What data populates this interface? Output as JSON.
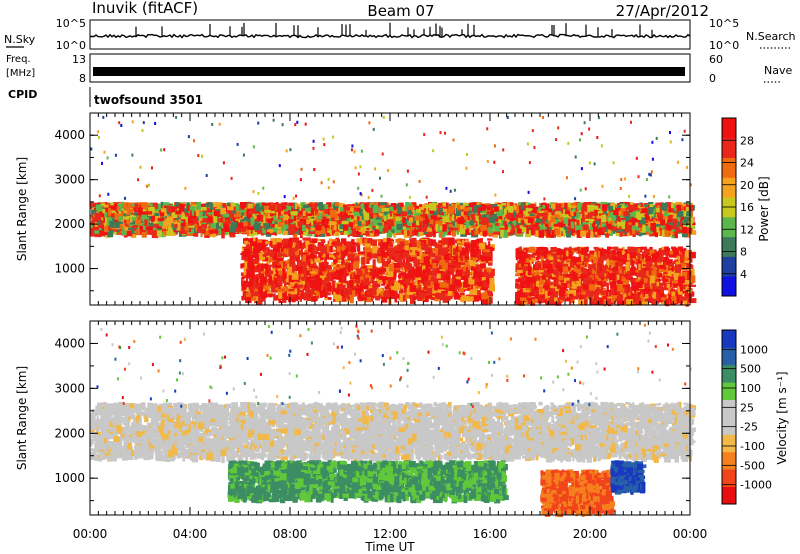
{
  "header": {
    "station": "Inuvik (fitACF)",
    "beam": "Beam 07",
    "date": "27/Apr/2012"
  },
  "panels": {
    "nsky_label": "N.Sky",
    "nsky_ticks": [
      "10^5",
      "10^0"
    ],
    "nsearch_label": "N.Search",
    "freq_label_line1": "Freq.",
    "freq_label_line2": "[MHz]",
    "freq_ticks": [
      "13",
      "8"
    ],
    "nave_label": "Nave",
    "nave_ticks": [
      "60",
      "0"
    ],
    "cpid_label": "CPID",
    "cpid_value": "twofsound 3501"
  },
  "colors": {
    "power_scale": [
      "#1010e0",
      "#2040a0",
      "#3c7a5a",
      "#5cb84c",
      "#c8c81e",
      "#f5a21e",
      "#f06a10",
      "#e8281a",
      "#f01212"
    ],
    "velocity_scale": [
      "#e80e0e",
      "#f2441a",
      "#f5801e",
      "#f2b848",
      "#c8c8c8",
      "#c8c8c8",
      "#60c83a",
      "#3c8c64",
      "#2860a8",
      "#1838c0"
    ]
  },
  "chart_data": [
    {
      "type": "heatmap",
      "name": "power",
      "ylabel": "Slant Range [km]",
      "ylim": [
        180,
        4500
      ],
      "yticks": [
        "1000",
        "2000",
        "3000",
        "4000"
      ],
      "xlim_hours": [
        0,
        24
      ],
      "colorbar_label": "Power [dB]",
      "colorbar_ticks": [
        "4",
        "8",
        "12",
        "16",
        "20",
        "24",
        "28"
      ],
      "echo_bands": [
        {
          "t0": 0.0,
          "t1": 24.0,
          "r0": 1850,
          "r1": 2500,
          "level": "mixed"
        },
        {
          "t0": 6.0,
          "t1": 16.0,
          "r0": 350,
          "r1": 1700,
          "level": "strong"
        },
        {
          "t0": 17.0,
          "t1": 24.0,
          "r0": 300,
          "r1": 1500,
          "level": "strong"
        }
      ]
    },
    {
      "type": "heatmap",
      "name": "velocity",
      "ylabel": "Slant Range [km]",
      "ylim": [
        180,
        4500
      ],
      "yticks": [
        "1000",
        "2000",
        "3000",
        "4000"
      ],
      "xlim_hours": [
        0,
        24
      ],
      "xticks": [
        "00:00",
        "04:00",
        "08:00",
        "12:00",
        "16:00",
        "20:00",
        "00:00"
      ],
      "xlabel": "Time UT",
      "colorbar_label": "Velocity [m s⁻¹]",
      "colorbar_ticks": [
        "1000",
        "500",
        "100",
        "25",
        "-25",
        "-100",
        "-500",
        "-1000"
      ],
      "echo_bands": [
        {
          "t0": 0.0,
          "t1": 24.0,
          "r0": 1500,
          "r1": 2700,
          "level": "near-zero"
        },
        {
          "t0": 5.5,
          "t1": 16.5,
          "r0": 600,
          "r1": 1400,
          "level": "positive"
        },
        {
          "t0": 18.0,
          "t1": 20.8,
          "r0": 300,
          "r1": 1200,
          "level": "negative"
        },
        {
          "t0": 20.8,
          "t1": 22.0,
          "r0": 800,
          "r1": 1400,
          "level": "strong-positive"
        }
      ]
    }
  ]
}
